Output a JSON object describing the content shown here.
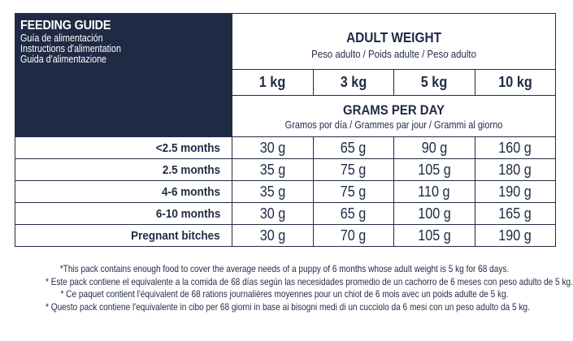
{
  "header": {
    "title": "FEEDING GUIDE",
    "subtitles": [
      "Guía de alimentación",
      "Instructions d'alimentation",
      "Guida d'alimentazione"
    ]
  },
  "adult_weight": {
    "title": "ADULT WEIGHT",
    "subtitle": "Peso adulto / Poids adulte / Peso adulto",
    "weights": [
      "1 kg",
      "3 kg",
      "5 kg",
      "10 kg"
    ]
  },
  "grams_per_day": {
    "title": "GRAMS PER DAY",
    "subtitle": "Gramos por día / Grammes par jour / Grammi al giorno"
  },
  "rows": [
    {
      "label": "<2.5 months",
      "values": [
        "30 g",
        "65 g",
        "90 g",
        "160 g"
      ]
    },
    {
      "label": "2.5 months",
      "values": [
        "35 g",
        "75 g",
        "105 g",
        "180 g"
      ]
    },
    {
      "label": "4-6 months",
      "values": [
        "35 g",
        "75 g",
        "110 g",
        "190 g"
      ]
    },
    {
      "label": "6-10 months",
      "values": [
        "30 g",
        "65 g",
        "100 g",
        "165 g"
      ]
    },
    {
      "label": "Pregnant bitches",
      "values": [
        "30 g",
        "70 g",
        "105 g",
        "190 g"
      ]
    }
  ],
  "footnotes": [
    "*This pack contains enough food to cover the average needs of a puppy of 6 months whose adult weight is 5 kg for 68 days.",
    "* Este pack contiene el equivalente a la comida de 68 días según las necesidades promedio de un cachorro de 6 meses con peso adulto de 5 kg.",
    "* Ce paquet contient l'équivalent de 68 rations journalières moyennes pour un chiot de 6 mois avec un poids adulte de 5 kg.",
    "* Questo pack contiene l'equivalente in cibo per 68 giorni in base ai bisogni medi di un cucciolo da 6 mesi con un peso adulto da 5 kg."
  ],
  "colors": {
    "navy": "#1f2a44",
    "background": "#ffffff"
  }
}
